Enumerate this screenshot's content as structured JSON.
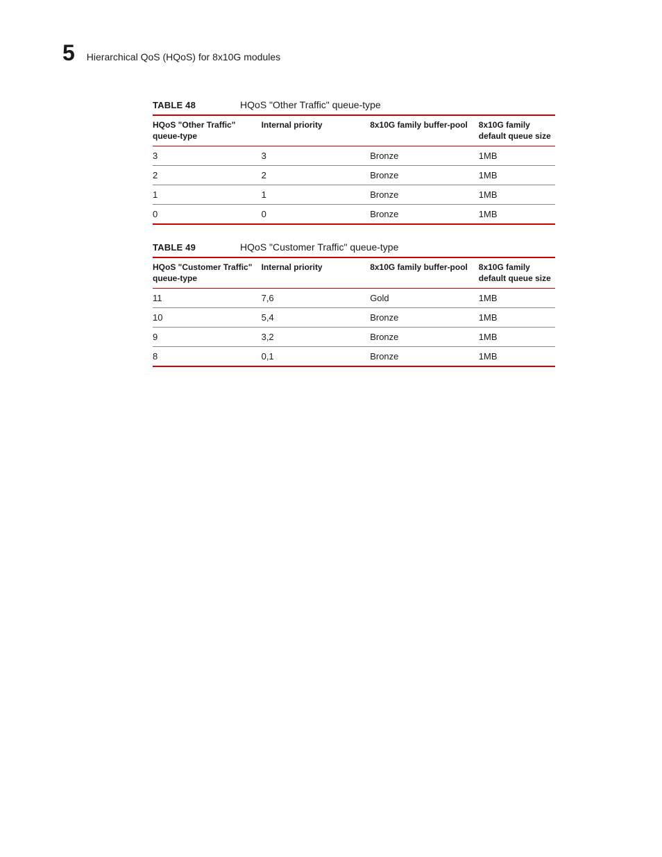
{
  "page": {
    "chapter_number": "5",
    "chapter_title": "Hierarchical QoS (HQoS) for 8x10G modules"
  },
  "colors": {
    "rule": "#cc0000",
    "row_divider": "#888888",
    "text": "#1a1a1a",
    "background": "#ffffff"
  },
  "typography": {
    "chapter_num_fontsize": 32,
    "chapter_title_fontsize": 14,
    "caption_label_fontsize": 13,
    "caption_text_fontsize": 14,
    "th_fontsize": 12,
    "td_fontsize": 13
  },
  "tables": [
    {
      "label": "TABLE 48",
      "caption": "HQoS \"Other Traffic\" queue-type",
      "columns": [
        "HQoS \"Other Traffic\" queue-type",
        "Internal priority",
        "8x10G family buffer-pool",
        "8x10G family default queue size"
      ],
      "rows": [
        [
          "3",
          "3",
          "Bronze",
          "1MB"
        ],
        [
          "2",
          "2",
          "Bronze",
          "1MB"
        ],
        [
          "1",
          "1",
          "Bronze",
          "1MB"
        ],
        [
          "0",
          "0",
          "Bronze",
          "1MB"
        ]
      ]
    },
    {
      "label": "TABLE 49",
      "caption": "HQoS \"Customer Traffic\" queue-type",
      "columns": [
        "HQoS \"Customer Traffic\" queue-type",
        "Internal priority",
        "8x10G family buffer-pool",
        "8x10G family default queue size"
      ],
      "rows": [
        [
          "11",
          "7,6",
          "Gold",
          "1MB"
        ],
        [
          "10",
          "5,4",
          "Bronze",
          "1MB"
        ],
        [
          "9",
          "3,2",
          "Bronze",
          "1MB"
        ],
        [
          "8",
          "0,1",
          "Bronze",
          "1MB"
        ]
      ]
    }
  ]
}
